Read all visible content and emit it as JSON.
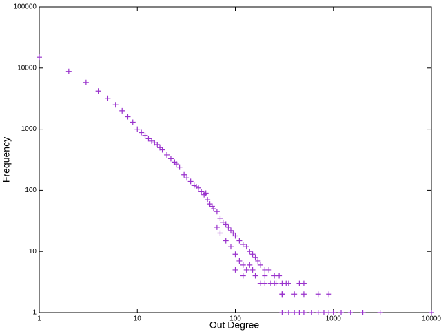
{
  "chart_data": {
    "type": "scatter",
    "x_label": "Out Degree",
    "y_label": "Frequency",
    "xscale": "log",
    "yscale": "log",
    "color": "#9932cc",
    "marker": "plus",
    "xlim": [
      1,
      10000
    ],
    "ylim": [
      1,
      100000
    ],
    "xticks": [
      1,
      10,
      100,
      1000,
      10000
    ],
    "yticks": [
      1,
      10,
      100,
      1000,
      10000,
      100000
    ],
    "series": [
      {
        "name": "Out Degree",
        "color": "#9932cc",
        "x": [
          1,
          2,
          3,
          4,
          5,
          6,
          7,
          8,
          9,
          10,
          11,
          12,
          13,
          14,
          15,
          16,
          17,
          18,
          20,
          22,
          24,
          25,
          27,
          30,
          32,
          35,
          38,
          40,
          42,
          45,
          48,
          50,
          52,
          55,
          58,
          60,
          65,
          70,
          75,
          80,
          85,
          90,
          95,
          100,
          110,
          120,
          130,
          140,
          150,
          160,
          170,
          180,
          200,
          220,
          250,
          280,
          300,
          350,
          90,
          100,
          110,
          120,
          130,
          150,
          200,
          250,
          300,
          400,
          500,
          700,
          900,
          300,
          350,
          400,
          450,
          500,
          600,
          700,
          800,
          900,
          1000,
          1200,
          1500,
          2000,
          3000,
          10000,
          450,
          500,
          100,
          80,
          70,
          65,
          120,
          140,
          160,
          180,
          200,
          230,
          260,
          300,
          330
        ],
        "values": [
          15000,
          8800,
          5800,
          4200,
          3200,
          2500,
          2000,
          1600,
          1300,
          1000,
          880,
          790,
          700,
          640,
          600,
          560,
          500,
          460,
          380,
          330,
          290,
          270,
          240,
          180,
          160,
          140,
          120,
          115,
          110,
          95,
          85,
          90,
          70,
          60,
          55,
          50,
          45,
          35,
          30,
          28,
          25,
          22,
          20,
          18,
          15,
          13,
          12,
          10,
          9,
          8,
          7,
          6,
          5,
          5,
          4,
          4,
          3,
          3,
          12,
          9,
          7,
          6,
          5,
          5,
          3,
          3,
          2,
          2,
          2,
          2,
          2,
          1,
          1,
          1,
          1,
          1,
          1,
          1,
          1,
          1,
          1,
          1,
          1,
          1,
          1,
          1,
          3,
          3,
          5,
          15,
          20,
          25,
          4,
          6,
          4,
          3,
          4,
          3,
          3,
          2,
          3
        ]
      }
    ]
  }
}
